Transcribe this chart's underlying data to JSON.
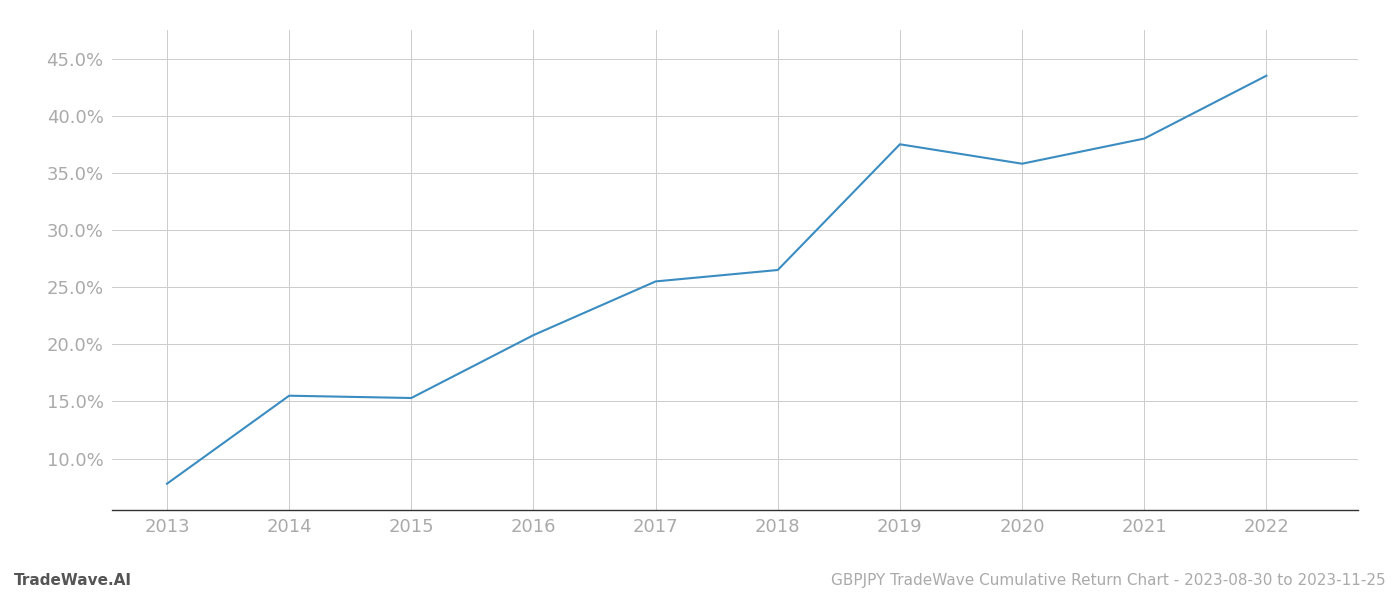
{
  "x_years": [
    2013,
    2014,
    2015,
    2016,
    2017,
    2018,
    2019,
    2020,
    2021,
    2022
  ],
  "y_values": [
    7.8,
    15.5,
    15.3,
    20.8,
    25.5,
    26.5,
    37.5,
    35.8,
    38.0,
    43.5
  ],
  "line_color": "#3a8cc1",
  "line_width": 1.5,
  "ylim_min": 5.5,
  "ylim_max": 47.5,
  "yticks": [
    10.0,
    15.0,
    20.0,
    25.0,
    30.0,
    35.0,
    40.0,
    45.0
  ],
  "xlim_min": 2012.55,
  "xlim_max": 2022.75,
  "xticks": [
    2013,
    2014,
    2015,
    2016,
    2017,
    2018,
    2019,
    2020,
    2021,
    2022
  ],
  "grid_color": "#cccccc",
  "grid_linestyle": "-",
  "background_color": "#ffffff",
  "tick_label_color": "#aaaaaa",
  "tick_label_fontsize": 13,
  "bottom_spine_color": "#333333",
  "footer_left": "TradeWave.AI",
  "footer_right": "GBPJPY TradeWave Cumulative Return Chart - 2023-08-30 to 2023-11-25",
  "footer_fontsize": 11,
  "footer_color_left": "#555555",
  "footer_color_right": "#aaaaaa"
}
